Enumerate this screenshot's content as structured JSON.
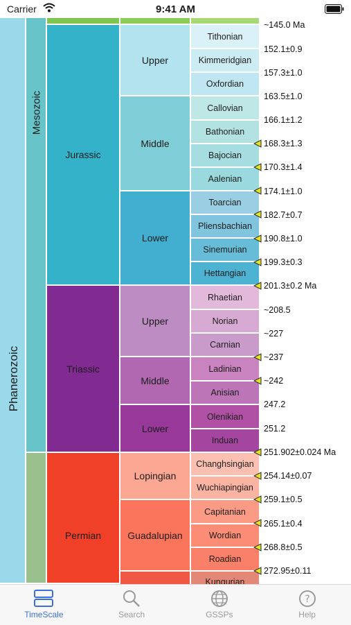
{
  "status": {
    "carrier": "Carrier",
    "time": "9:41 AM"
  },
  "timescale": {
    "eon": "Phanerozoic",
    "era": "Mesozoic",
    "periods": [
      "Jurassic",
      "Triassic",
      "Permian"
    ],
    "epochs": [
      "Upper",
      "Middle",
      "Lower",
      "Upper",
      "Middle",
      "Lower",
      "Lopingian",
      "Guadalupian"
    ],
    "stages": [
      "Tithonian",
      "Kimmeridgian",
      "Oxfordian",
      "Callovian",
      "Bathonian",
      "Bajocian",
      "Aalenian",
      "Toarcian",
      "Pliensbachian",
      "Sinemurian",
      "Hettangian",
      "Rhaetian",
      "Norian",
      "Carnian",
      "Ladinian",
      "Anisian",
      "Olenikian",
      "Induan",
      "Changhsingian",
      "Wuchiapingian",
      "Capitanian",
      "Wordian",
      "Roadian",
      "Kungurian"
    ],
    "ages": [
      "~145.0 Ma",
      "152.1±0.9",
      "157.3±1.0",
      "163.5±1.0",
      "166.1±1.2",
      "168.3±1.3",
      "170.3±1.4",
      "174.1±1.0",
      "182.7±0.7",
      "190.8±1.0",
      "199.3±0.3",
      "201.3±0.2 Ma",
      "~208.5",
      "~227",
      "~237",
      "~242",
      "247.2",
      "251.2",
      "251.902±0.024 Ma",
      "254.14±0.07",
      "259.1±0.5",
      "265.1±0.4",
      "268.8±0.5",
      "272.95±0.11"
    ]
  },
  "tabs": [
    {
      "label": "TimeScale",
      "icon": "timescale-icon",
      "active": true
    },
    {
      "label": "Search",
      "icon": "search-icon",
      "active": false
    },
    {
      "label": "GSSPs",
      "icon": "globe-icon",
      "active": false
    },
    {
      "label": "Help",
      "icon": "help-icon",
      "active": false
    }
  ],
  "colors": {
    "phanerozoic": "#9ad9ea",
    "mesozoic": "#67c5ca",
    "jurassic": "#34b2c9",
    "triassic": "#812b92",
    "paleozoic": "#99c08d",
    "permian": "#f04028",
    "accent": "#3b6fe0",
    "gssp_marker": "#e2e227"
  }
}
